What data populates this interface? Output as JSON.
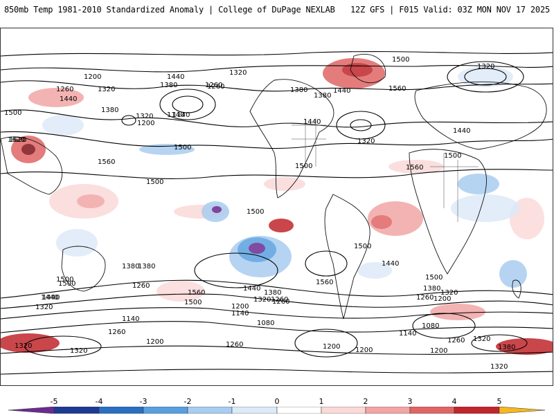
{
  "header": {
    "title_left": "850mb Temp 1981-2010 Standardized Anomaly | College of DuPage NEXLAB",
    "title_right": "12Z GFS | F015 Valid: 03Z MON NOV 17 2025"
  },
  "map": {
    "variable": "850mb temperature standardized anomaly",
    "contour_field": "geopotential height",
    "contour_labels": [
      "1200",
      "1260",
      "1320",
      "1380",
      "1440",
      "1500",
      "1560",
      "1620",
      "1440",
      "1380",
      "1260",
      "1320",
      "1140",
      "1500",
      "1500",
      "1500",
      "1560",
      "1500",
      "1440",
      "1380",
      "1320",
      "1260",
      "1200",
      "1140",
      "1080",
      "1200",
      "1200",
      "1320",
      "1320",
      "1260",
      "1140",
      "1200",
      "1260",
      "1440",
      "1560",
      "1500",
      "1380",
      "1500",
      "1560",
      "1500",
      "1440",
      "1380",
      "1320",
      "1260",
      "1200",
      "1080",
      "1140",
      "1200",
      "1260",
      "1320",
      "1380",
      "1320",
      "1440",
      "1500",
      "1560",
      "1320",
      "1440",
      "1500",
      "1620",
      "1380",
      "1500",
      "1440",
      "1380",
      "1320",
      "1260",
      "1200",
      "1140",
      "1320",
      "1260",
      "1260",
      "1500",
      "1440",
      "1380",
      "1320"
    ]
  },
  "colorbar": {
    "ticks": [
      "-5",
      "-4",
      "-3",
      "-2",
      "-1",
      "0",
      "1",
      "2",
      "3",
      "4",
      "5"
    ],
    "colors": [
      "#6a2c91",
      "#1f3a93",
      "#2b6fc2",
      "#5aa0e0",
      "#a9cdf0",
      "#ddeaf8",
      "#ffffff",
      "#fbd9d9",
      "#f2a6a6",
      "#e06666",
      "#c0262b",
      "#7e1418",
      "#f5b820"
    ]
  }
}
